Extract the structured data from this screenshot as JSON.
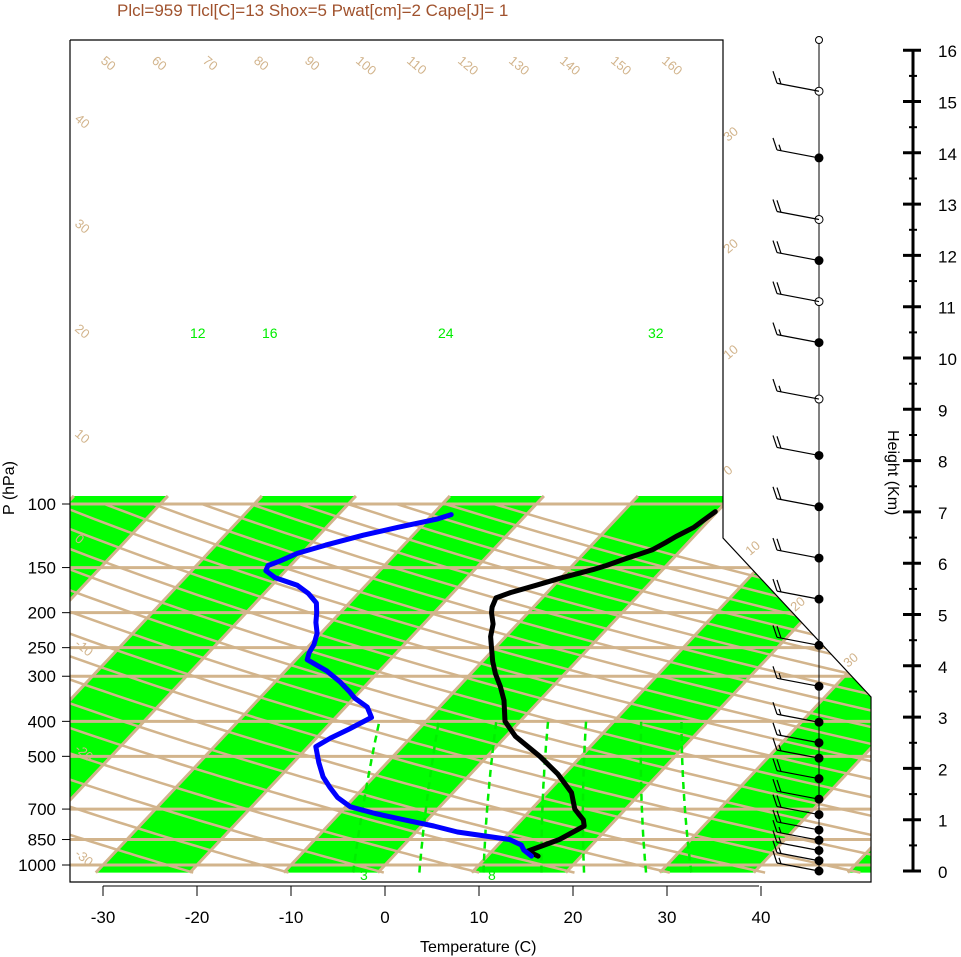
{
  "title": "Plcl=959 Tlcl[C]=13 Shox=5 Pwat[cm]=2 Cape[J]= 1",
  "colors": {
    "temperature": "#000000",
    "dewpoint": "#0000ff",
    "green_band": "#00ff00",
    "tan_lines": "#d2b48c",
    "mixing_ratio": "#00ee00",
    "title": "#a0522d"
  },
  "chart_data": {
    "type": "line",
    "title": "Plcl=959 Tlcl[C]=13 Shox=5 Pwat[cm]=2 Cape[J]= 1",
    "xlabel": "Temperature (C)",
    "ylabel": "P (hPa)",
    "y2label": "Height (Km)",
    "xlim": [
      -34,
      52
    ],
    "x_ticks": [
      -30,
      -20,
      -10,
      0,
      10,
      20,
      30,
      40
    ],
    "y_ticks_hPa": [
      100,
      150,
      200,
      250,
      300,
      400,
      500,
      700,
      850,
      1000
    ],
    "height_ticks_km": [
      0,
      1,
      2,
      3,
      4,
      5,
      6,
      7,
      8,
      9,
      10,
      11,
      12,
      13,
      14,
      15,
      16
    ],
    "theta_labels": [
      "50",
      "60",
      "70",
      "80",
      "90",
      "100",
      "110",
      "120",
      "130",
      "140",
      "150",
      "160"
    ],
    "isotherm_labels": [
      "40",
      "30",
      "20",
      "10",
      "0",
      "-10",
      "-20",
      "-30"
    ],
    "isotherm_labels_right": [
      "30",
      "20",
      "10",
      "0",
      "10",
      "20",
      "30"
    ],
    "mixing_ratio_labels": [
      "12",
      "16",
      "24",
      "32"
    ],
    "mixing_ratio_labels_bottom": [
      "3",
      "8"
    ],
    "series": [
      {
        "name": "Temperature",
        "points": [
          [
            15.4,
            945
          ],
          [
            13.8,
            915
          ],
          [
            16.0,
            850
          ],
          [
            17.3,
            780
          ],
          [
            16.6,
            750
          ],
          [
            15.4,
            720
          ],
          [
            14.6,
            700
          ],
          [
            12.6,
            630
          ],
          [
            9.3,
            560
          ],
          [
            5.6,
            500
          ],
          [
            1.0,
            440
          ],
          [
            -1.6,
            400
          ],
          [
            -3.8,
            350
          ],
          [
            -5.6,
            320
          ],
          [
            -7.4,
            295
          ],
          [
            -8.9,
            273
          ],
          [
            -10.4,
            250
          ],
          [
            -11.6,
            233
          ],
          [
            -12.6,
            215
          ],
          [
            -13.9,
            200
          ],
          [
            -14.4,
            193
          ],
          [
            -14.9,
            182
          ],
          [
            -13.9,
            176
          ],
          [
            -11.9,
            168
          ],
          [
            -9.9,
            160
          ],
          [
            -7.4,
            152
          ],
          [
            -6.4,
            148
          ],
          [
            -5.1,
            142
          ],
          [
            -3.1,
            134
          ],
          [
            -2.4,
            128
          ],
          [
            -1.9,
            123
          ],
          [
            -0.9,
            116
          ],
          [
            -0.6,
            111
          ],
          [
            -0.2,
            105
          ]
        ]
      },
      {
        "name": "Dewpoint",
        "points": [
          [
            14.7,
            945
          ],
          [
            13.3,
            910
          ],
          [
            12.5,
            880
          ],
          [
            10.7,
            850
          ],
          [
            4.4,
            810
          ],
          [
            1.3,
            780
          ],
          [
            -2.4,
            750
          ],
          [
            -6.2,
            720
          ],
          [
            -9.5,
            690
          ],
          [
            -11.8,
            650
          ],
          [
            -13.6,
            610
          ],
          [
            -15.4,
            570
          ],
          [
            -17.3,
            520
          ],
          [
            -19.2,
            470
          ],
          [
            -18.5,
            445
          ],
          [
            -17.4,
            420
          ],
          [
            -16.2,
            390
          ],
          [
            -17.7,
            365
          ],
          [
            -19.9,
            345
          ],
          [
            -21.2,
            330
          ],
          [
            -23.2,
            310
          ],
          [
            -25.6,
            290
          ],
          [
            -28.8,
            270
          ],
          [
            -29.3,
            258
          ],
          [
            -29.6,
            245
          ],
          [
            -30.4,
            228
          ],
          [
            -31.6,
            213
          ],
          [
            -32.5,
            200
          ],
          [
            -33.5,
            188
          ],
          [
            -35.3,
            177
          ],
          [
            -37.3,
            168
          ],
          [
            -40.4,
            160
          ],
          [
            -42.1,
            153
          ],
          [
            -42.4,
            148
          ],
          [
            -41.6,
            144
          ],
          [
            -40.5,
            137
          ],
          [
            -38.3,
            130
          ],
          [
            -35.3,
            122
          ],
          [
            -32.4,
            116
          ],
          [
            -29.0,
            110
          ],
          [
            -28.0,
            107
          ]
        ]
      }
    ],
    "wind_barbs": [
      {
        "height_km": 0.0,
        "speed_kt": 15
      },
      {
        "height_km": 0.2,
        "speed_kt": 15
      },
      {
        "height_km": 0.4,
        "speed_kt": 15
      },
      {
        "height_km": 0.6,
        "speed_kt": 15
      },
      {
        "height_km": 0.8,
        "speed_kt": 20
      },
      {
        "height_km": 1.1,
        "speed_kt": 20
      },
      {
        "height_km": 1.4,
        "speed_kt": 20
      },
      {
        "height_km": 1.8,
        "speed_kt": 20
      },
      {
        "height_km": 2.2,
        "speed_kt": 15
      },
      {
        "height_km": 2.5,
        "speed_kt": 15
      },
      {
        "height_km": 2.9,
        "speed_kt": 15
      },
      {
        "height_km": 3.6,
        "speed_kt": 15
      },
      {
        "height_km": 4.4,
        "speed_kt": 20
      },
      {
        "height_km": 5.3,
        "speed_kt": 20
      },
      {
        "height_km": 6.1,
        "speed_kt": 20
      },
      {
        "height_km": 7.1,
        "speed_kt": 20
      },
      {
        "height_km": 8.1,
        "speed_kt": 20
      },
      {
        "height_km": 9.2,
        "speed_kt": 15
      },
      {
        "height_km": 10.3,
        "speed_kt": 15
      },
      {
        "height_km": 11.1,
        "speed_kt": 20
      },
      {
        "height_km": 11.9,
        "speed_kt": 20
      },
      {
        "height_km": 12.7,
        "speed_kt": 20
      },
      {
        "height_km": 13.9,
        "speed_kt": 15
      },
      {
        "height_km": 15.2,
        "speed_kt": 15
      }
    ]
  }
}
